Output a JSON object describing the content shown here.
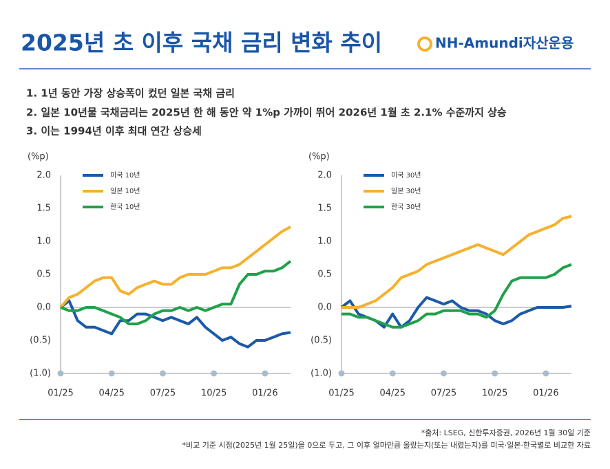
{
  "header": {
    "title": "2025년 초 이후 국채 금리 변화 추이",
    "logo": "NH-Amundi자산운용"
  },
  "points": [
    "1. 1년 동안 가장 상승폭이 컸던 일본 국채 금리",
    "2. 일본 10년물 국채금리는 2025년 한 해 동안 약 1%p 가까이 뛰어 2026년 1월 초 2.1% 수준까지 상승",
    "3. 이는 1994년 이후 최대 연간 상승세"
  ],
  "chart_data": [
    {
      "type": "line",
      "y_unit": "(%p)",
      "x": [
        0,
        0.5,
        1,
        1.5,
        2,
        2.5,
        3,
        3.5,
        4,
        4.5,
        5,
        5.5,
        6,
        6.5,
        7,
        7.5,
        8,
        8.5,
        9,
        9.5,
        10,
        10.5,
        11,
        11.5,
        12,
        12.5,
        13,
        13.5
      ],
      "xlim": [
        0,
        13.5
      ],
      "xticks": [
        {
          "value": 0,
          "label": "01/25"
        },
        {
          "value": 3,
          "label": "04/25"
        },
        {
          "value": 6,
          "label": "07/25"
        },
        {
          "value": 9,
          "label": "10/25"
        },
        {
          "value": 12,
          "label": "01/26"
        }
      ],
      "ylim": [
        -1,
        2
      ],
      "yticks": [
        {
          "value": 2,
          "label": "2.0"
        },
        {
          "value": 1.5,
          "label": "1.5"
        },
        {
          "value": 1,
          "label": "1.0"
        },
        {
          "value": 0.5,
          "label": "0.5"
        },
        {
          "value": 0,
          "label": "0.0"
        },
        {
          "value": -0.5,
          "label": "(0.5)"
        },
        {
          "value": -1,
          "label": "(1.0)"
        }
      ],
      "series": [
        {
          "name": "미국 10년",
          "color": "#1a5aaa",
          "values": [
            0,
            0.1,
            -0.2,
            -0.3,
            -0.3,
            -0.35,
            -0.4,
            -0.2,
            -0.2,
            -0.1,
            -0.1,
            -0.15,
            -0.2,
            -0.15,
            -0.2,
            -0.25,
            -0.15,
            -0.3,
            -0.4,
            -0.5,
            -0.45,
            -0.55,
            -0.6,
            -0.5,
            -0.5,
            -0.45,
            -0.4,
            -0.38
          ]
        },
        {
          "name": "일본 10년",
          "color": "#f5b12e",
          "values": [
            0,
            0.15,
            0.2,
            0.3,
            0.4,
            0.45,
            0.45,
            0.25,
            0.2,
            0.3,
            0.35,
            0.4,
            0.35,
            0.35,
            0.45,
            0.5,
            0.5,
            0.5,
            0.55,
            0.6,
            0.6,
            0.65,
            0.75,
            0.85,
            0.95,
            1.05,
            1.15,
            1.22
          ]
        },
        {
          "name": "한국 10년",
          "color": "#21a04a",
          "values": [
            0,
            -0.05,
            -0.05,
            0,
            0,
            -0.05,
            -0.1,
            -0.15,
            -0.25,
            -0.25,
            -0.2,
            -0.1,
            -0.05,
            -0.05,
            0,
            -0.05,
            0,
            -0.05,
            0,
            0.05,
            0.05,
            0.35,
            0.5,
            0.5,
            0.55,
            0.55,
            0.6,
            0.7
          ]
        }
      ]
    },
    {
      "type": "line",
      "y_unit": "(%p)",
      "x": [
        0,
        0.5,
        1,
        1.5,
        2,
        2.5,
        3,
        3.5,
        4,
        4.5,
        5,
        5.5,
        6,
        6.5,
        7,
        7.5,
        8,
        8.5,
        9,
        9.5,
        10,
        10.5,
        11,
        11.5,
        12,
        12.5,
        13,
        13.5
      ],
      "xlim": [
        0,
        13.5
      ],
      "xticks": [
        {
          "value": 0,
          "label": "01/25"
        },
        {
          "value": 3,
          "label": "04/25"
        },
        {
          "value": 6,
          "label": "07/25"
        },
        {
          "value": 9,
          "label": "10/25"
        },
        {
          "value": 12,
          "label": "01/26"
        }
      ],
      "ylim": [
        -1,
        2
      ],
      "yticks": [
        {
          "value": 2,
          "label": "2.0"
        },
        {
          "value": 1.5,
          "label": "1.5"
        },
        {
          "value": 1,
          "label": "1.0"
        },
        {
          "value": 0.5,
          "label": "0.5"
        },
        {
          "value": 0,
          "label": "0.0"
        },
        {
          "value": -0.5,
          "label": "(0.5)"
        },
        {
          "value": -1,
          "label": "(1.0)"
        }
      ],
      "series": [
        {
          "name": "미국 30년",
          "color": "#1a5aaa",
          "values": [
            0,
            0.1,
            -0.1,
            -0.15,
            -0.2,
            -0.3,
            -0.1,
            -0.3,
            -0.2,
            0,
            0.15,
            0.1,
            0.05,
            0.1,
            0,
            -0.05,
            -0.05,
            -0.1,
            -0.2,
            -0.25,
            -0.2,
            -0.1,
            -0.05,
            0,
            0,
            0,
            0,
            0.02
          ]
        },
        {
          "name": "일본 30년",
          "color": "#f5b12e",
          "values": [
            0,
            0,
            0,
            0.05,
            0.1,
            0.2,
            0.3,
            0.45,
            0.5,
            0.55,
            0.65,
            0.7,
            0.75,
            0.8,
            0.85,
            0.9,
            0.95,
            0.9,
            0.85,
            0.8,
            0.9,
            1,
            1.1,
            1.15,
            1.2,
            1.25,
            1.35,
            1.38
          ]
        },
        {
          "name": "한국 30년",
          "color": "#21a04a",
          "values": [
            -0.1,
            -0.1,
            -0.15,
            -0.15,
            -0.2,
            -0.25,
            -0.3,
            -0.3,
            -0.25,
            -0.2,
            -0.1,
            -0.1,
            -0.05,
            -0.05,
            -0.05,
            -0.1,
            -0.1,
            -0.15,
            -0.05,
            0.2,
            0.4,
            0.45,
            0.45,
            0.45,
            0.45,
            0.5,
            0.6,
            0.65
          ]
        }
      ]
    }
  ],
  "notes": [
    "*출처: LSEG, 신한투자증권, 2026년 1월 30일 기준",
    "*비교 기준 시점(2025년 1월 25일)을 0으로 두고, 그 이후 얼마만큼 올랐는지(또는 내렸는지)를 미국·일본·한국별로 비교한 자료"
  ]
}
